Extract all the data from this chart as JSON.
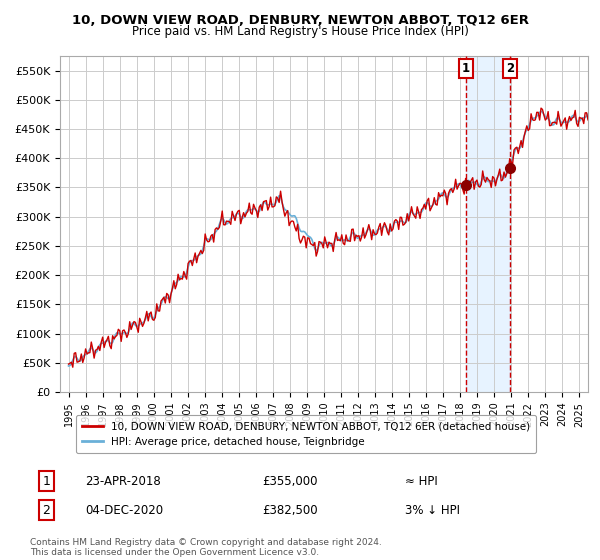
{
  "title": "10, DOWN VIEW ROAD, DENBURY, NEWTON ABBOT, TQ12 6ER",
  "subtitle": "Price paid vs. HM Land Registry's House Price Index (HPI)",
  "legend_line1": "10, DOWN VIEW ROAD, DENBURY, NEWTON ABBOT, TQ12 6ER (detached house)",
  "legend_line2": "HPI: Average price, detached house, Teignbridge",
  "footer": "Contains HM Land Registry data © Crown copyright and database right 2024.\nThis data is licensed under the Open Government Licence v3.0.",
  "hpi_color": "#6ab0d8",
  "price_color": "#cc0000",
  "point_color": "#8b0000",
  "bg_highlight": "#ddeeff",
  "vline_color": "#cc0000",
  "grid_color": "#cccccc",
  "ylim": [
    0,
    575000
  ],
  "yticks": [
    0,
    50000,
    100000,
    150000,
    200000,
    250000,
    300000,
    350000,
    400000,
    450000,
    500000,
    550000
  ],
  "ytick_labels": [
    "£0",
    "£50K",
    "£100K",
    "£150K",
    "£200K",
    "£250K",
    "£300K",
    "£350K",
    "£400K",
    "£450K",
    "£500K",
    "£550K"
  ],
  "purchase1_date": 2018.31,
  "purchase1_price": 355000,
  "purchase1_label": "1",
  "purchase1_text": "23-APR-2018",
  "purchase1_amount": "£355,000",
  "purchase1_rel": "≈ HPI",
  "purchase2_date": 2020.92,
  "purchase2_price": 382500,
  "purchase2_label": "2",
  "purchase2_text": "04-DEC-2020",
  "purchase2_amount": "£382,500",
  "purchase2_rel": "3% ↓ HPI",
  "xmin": 1994.5,
  "xmax": 2025.5,
  "xtick_years": [
    1995,
    1996,
    1997,
    1998,
    1999,
    2000,
    2001,
    2002,
    2003,
    2004,
    2005,
    2006,
    2007,
    2008,
    2009,
    2010,
    2011,
    2012,
    2013,
    2014,
    2015,
    2016,
    2017,
    2018,
    2019,
    2020,
    2021,
    2022,
    2023,
    2024,
    2025
  ]
}
